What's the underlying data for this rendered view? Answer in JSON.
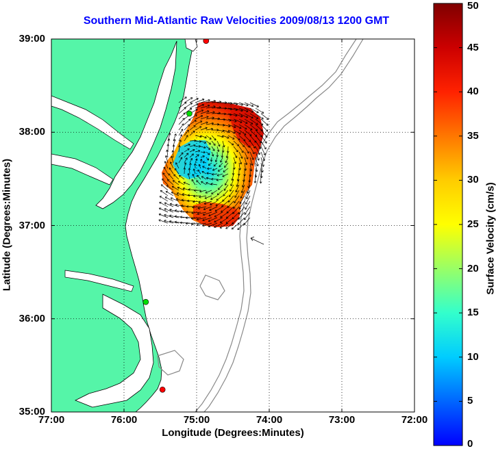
{
  "title": "Southern Mid-Atlantic Raw Velocities 2009/08/13 1200 GMT",
  "map": {
    "xlabel": "Longitude (Degrees:Minutes)",
    "ylabel": "Latitude (Degrees:Minutes)",
    "lon_range": [
      -77,
      -72
    ],
    "lat_range": [
      35,
      39
    ],
    "x_ticks": [
      "77:00",
      "76:00",
      "75:00",
      "74:00",
      "73:00",
      "72:00"
    ],
    "y_ticks": [
      "39:00",
      "38:00",
      "37:00",
      "36:00",
      "35:00"
    ],
    "grid": "dotted",
    "land_color": "#55f5a8",
    "stations": [
      {
        "lon": -74.87,
        "lat": 38.98,
        "color": "#ff0000"
      },
      {
        "lon": -75.1,
        "lat": 38.2,
        "color": "#00dd00"
      },
      {
        "lon": -75.7,
        "lat": 36.18,
        "color": "#00dd00"
      },
      {
        "lon": -75.47,
        "lat": 35.24,
        "color": "#ff0000"
      }
    ]
  },
  "colorbar": {
    "label": "Surface Velocity (cm/s)",
    "min": 0,
    "max": 50,
    "ticks": [
      "0",
      "5",
      "10",
      "15",
      "20",
      "25",
      "30",
      "35",
      "40",
      "45",
      "50"
    ],
    "colormap": [
      "#0000ff",
      "#00ffff",
      "#ffff00",
      "#ff0000",
      "#800000"
    ]
  }
}
